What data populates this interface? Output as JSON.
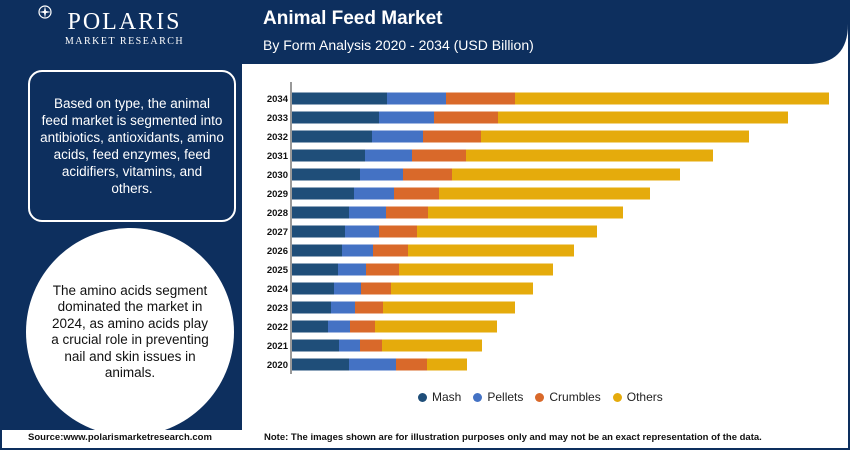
{
  "brand": {
    "name": "POLARIS",
    "tagline": "MARKET RESEARCH"
  },
  "header": {
    "title": "Animal Feed Market",
    "subtitle": "By Form Analysis 2020 - 2034 (USD Billion)"
  },
  "info_box": "Based on type, the animal feed market is segmented into antibiotics, antioxidants, amino acids, feed enzymes, feed acidifiers, vitamins, and others.",
  "highlight": "The amino acids segment dominated the market in 2024, as amino acids play a crucial role in preventing nail and skin issues in animals.",
  "footer": {
    "source": "Source:www.polarismarketresearch.com",
    "note": "Note: The images shown are for illustration purposes only and may not be an exact representation of the data."
  },
  "colors": {
    "navy": "#0d2f5e",
    "mash": "#1f4e79",
    "pellets": "#4472c4",
    "crumbles": "#d9692a",
    "others": "#e5ab0c"
  },
  "chart_data": {
    "type": "bar",
    "orientation": "horizontal",
    "stacked": true,
    "title": "Animal Feed Market",
    "subtitle": "By Form Analysis 2020 - 2034 (USD Billion)",
    "categories": [
      "2034",
      "2033",
      "2032",
      "2031",
      "2030",
      "2029",
      "2028",
      "2027",
      "2026",
      "2025",
      "2024",
      "2023",
      "2022",
      "2021",
      "2020"
    ],
    "series": [
      {
        "name": "Mash",
        "color": "#1f4e79",
        "values": [
          95,
          87,
          80,
          73,
          68,
          62,
          57,
          53,
          50,
          46,
          42,
          39,
          36,
          47,
          57
        ]
      },
      {
        "name": "Pellets",
        "color": "#4472c4",
        "values": [
          59,
          55,
          51,
          47,
          43,
          40,
          37,
          34,
          31,
          28,
          27,
          24,
          22,
          21,
          47
        ]
      },
      {
        "name": "Crumbles",
        "color": "#d9692a",
        "values": [
          69,
          64,
          58,
          54,
          49,
          45,
          42,
          38,
          35,
          33,
          30,
          28,
          25,
          22,
          31
        ]
      },
      {
        "name": "Others",
        "color": "#e5ab0c",
        "values": [
          314,
          290,
          268,
          247,
          228,
          211,
          195,
          180,
          166,
          154,
          142,
          132,
          122,
          100,
          40
        ]
      }
    ],
    "legend_position": "bottom",
    "grid": false
  }
}
